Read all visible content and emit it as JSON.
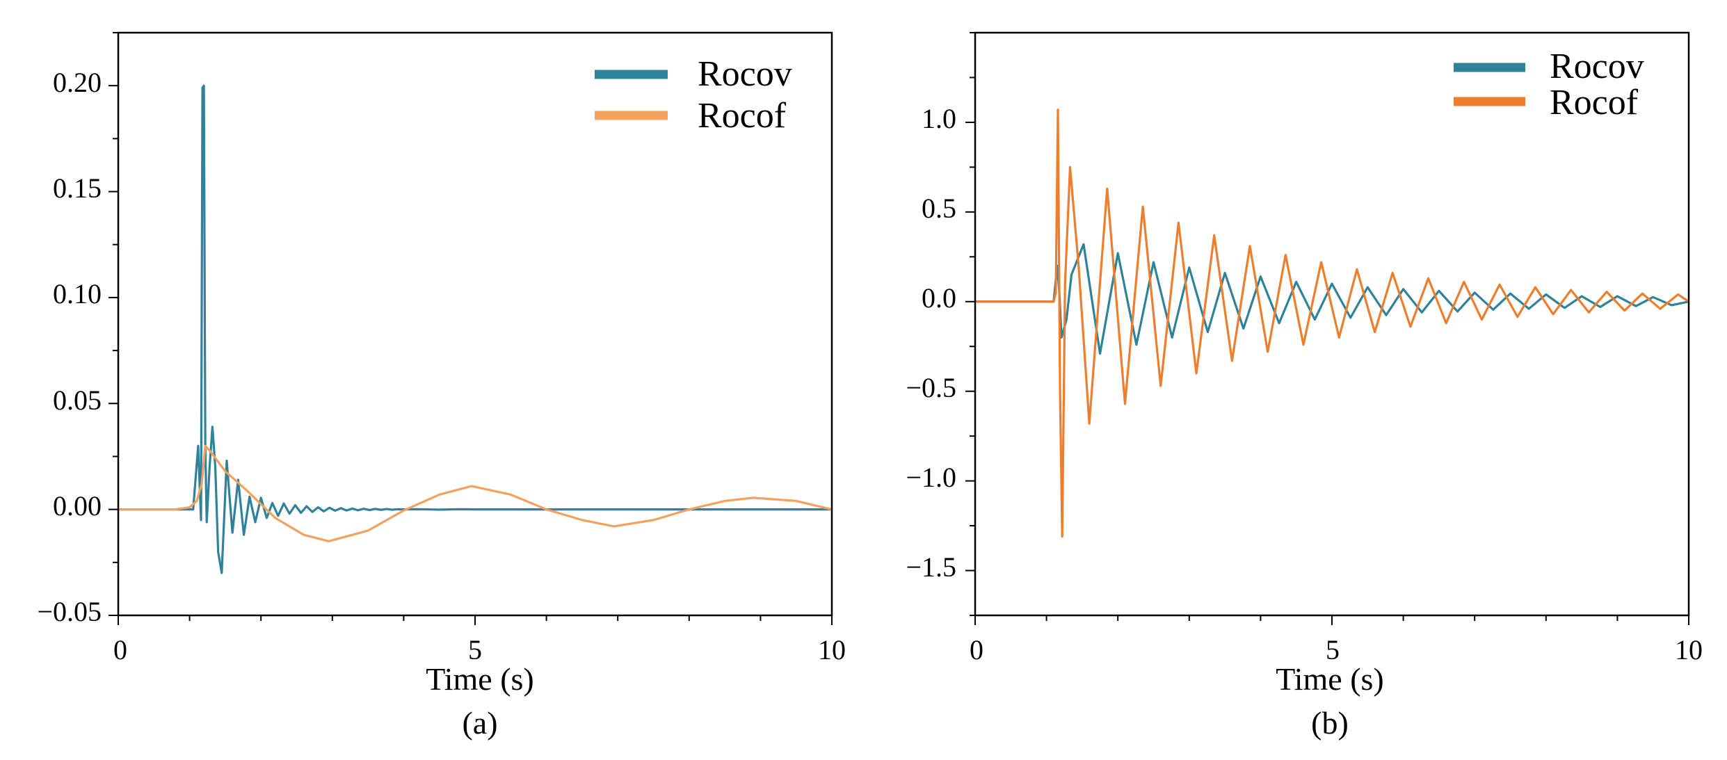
{
  "colors": {
    "rocov": "#2e8299",
    "rocof_a": "#f5a05c",
    "rocof_b": "#ee7d2c"
  },
  "chart_data": [
    {
      "panel": "a",
      "type": "line",
      "caption": "(a)",
      "xlabel": "Time (s)",
      "ylabel": "",
      "xlim": [
        0,
        10
      ],
      "ylim": [
        -0.05,
        0.225
      ],
      "xticks": [
        0,
        5,
        10
      ],
      "xtick_labels": [
        "0",
        "5",
        "10"
      ],
      "yticks": [
        -0.05,
        0.0,
        0.05,
        0.1,
        0.15,
        0.2
      ],
      "ytick_labels": [
        "−0.05",
        "0.00",
        "0.05",
        "0.10",
        "0.15",
        "0.20"
      ],
      "grid": false,
      "legend": {
        "location": "top-right",
        "entries": [
          "Rocov",
          "Rocof"
        ]
      },
      "series": [
        {
          "name": "Rocov",
          "x": [
            0,
            0.7,
            1.05,
            1.12,
            1.16,
            1.18,
            1.2,
            1.22,
            1.24,
            1.28,
            1.32,
            1.36,
            1.4,
            1.45,
            1.52,
            1.6,
            1.68,
            1.76,
            1.84,
            1.92,
            2.0,
            2.08,
            2.16,
            2.24,
            2.32,
            2.4,
            2.48,
            2.56,
            2.64,
            2.72,
            2.8,
            2.88,
            2.96,
            3.04,
            3.12,
            3.2,
            3.28,
            3.36,
            3.44,
            3.52,
            3.6,
            3.68,
            3.76,
            3.84,
            3.92,
            4.0,
            4.2,
            4.5,
            4.8,
            5.0,
            6.0,
            7.0,
            8.0,
            9.0,
            10.0
          ],
          "y": [
            0,
            0,
            0,
            0.03,
            -0.005,
            0.199,
            0.2,
            0.03,
            -0.006,
            0.02,
            0.039,
            0.02,
            -0.02,
            -0.03,
            0.023,
            -0.011,
            0.014,
            -0.012,
            0.006,
            -0.006,
            0.0055,
            -0.004,
            0.003,
            -0.003,
            0.0028,
            -0.002,
            0.002,
            -0.0016,
            0.0015,
            -0.0012,
            0.001,
            -0.0009,
            0.0008,
            -0.0006,
            0.0006,
            -0.0005,
            0.0004,
            -0.0004,
            0.0003,
            -0.0003,
            0.00025,
            -0.0002,
            0.0002,
            -0.00015,
            0.0001,
            0,
            0.0001,
            -0.0001,
            0.0001,
            0,
            0,
            0,
            0,
            0,
            0
          ]
        },
        {
          "name": "Rocof",
          "x": [
            0,
            0.8,
            1.0,
            1.1,
            1.17,
            1.22,
            1.3,
            1.5,
            1.8,
            2.2,
            2.6,
            2.95,
            3.5,
            4.0,
            4.5,
            4.95,
            5.5,
            6.0,
            6.5,
            6.95,
            7.5,
            8.0,
            8.5,
            8.9,
            9.5,
            10.0
          ],
          "y": [
            0,
            0,
            0.001,
            0.004,
            0.012,
            0.03,
            0.027,
            0.018,
            0.009,
            -0.004,
            -0.012,
            -0.015,
            -0.01,
            -0.0005,
            0.007,
            0.011,
            0.007,
            0.0,
            -0.005,
            -0.008,
            -0.005,
            0.0,
            0.004,
            0.0055,
            0.004,
            0.0
          ]
        }
      ]
    },
    {
      "panel": "b",
      "type": "line",
      "caption": "(b)",
      "xlabel": "Time (s)",
      "ylabel": "",
      "xlim": [
        0,
        10
      ],
      "ylim": [
        -1.75,
        1.5
      ],
      "xticks": [
        0,
        5,
        10
      ],
      "xtick_labels": [
        "0",
        "5",
        "10"
      ],
      "yticks": [
        -1.5,
        -1.0,
        -0.5,
        0.0,
        0.5,
        1.0
      ],
      "ytick_labels": [
        "−1.5",
        "−1.0",
        "−0.5",
        "0.0",
        "0.5",
        "1.0"
      ],
      "grid": false,
      "legend": {
        "location": "top-right",
        "entries": [
          "Rocov",
          "Rocof"
        ]
      },
      "series": [
        {
          "name": "Rocov",
          "x": [
            0,
            1.1,
            1.15,
            1.18,
            1.21,
            1.28,
            1.35,
            1.52,
            1.75,
            2.0,
            2.26,
            2.5,
            2.76,
            3.0,
            3.26,
            3.5,
            3.76,
            4.0,
            4.26,
            4.5,
            4.76,
            5.0,
            5.26,
            5.5,
            5.76,
            6.0,
            6.26,
            6.5,
            6.76,
            7.0,
            7.26,
            7.5,
            7.76,
            8.0,
            8.26,
            8.5,
            8.76,
            9.0,
            9.26,
            9.5,
            9.76,
            10.0
          ],
          "y": [
            0,
            0,
            0.2,
            0.05,
            -0.2,
            -0.1,
            0.15,
            0.32,
            -0.29,
            0.27,
            -0.24,
            0.22,
            -0.2,
            0.19,
            -0.17,
            0.16,
            -0.15,
            0.14,
            -0.12,
            0.11,
            -0.1,
            0.1,
            -0.09,
            0.08,
            -0.075,
            0.07,
            -0.06,
            0.06,
            -0.055,
            0.05,
            -0.045,
            0.045,
            -0.04,
            0.04,
            -0.035,
            0.03,
            -0.03,
            0.03,
            -0.025,
            0.025,
            -0.02,
            0.0
          ]
        },
        {
          "name": "Rocof",
          "x": [
            0,
            1.1,
            1.13,
            1.16,
            1.19,
            1.22,
            1.26,
            1.33,
            1.45,
            1.6,
            1.85,
            2.1,
            2.35,
            2.6,
            2.85,
            3.1,
            3.35,
            3.6,
            3.85,
            4.1,
            4.35,
            4.6,
            4.85,
            5.1,
            5.35,
            5.6,
            5.85,
            6.1,
            6.35,
            6.6,
            6.85,
            7.1,
            7.35,
            7.6,
            7.85,
            8.1,
            8.35,
            8.6,
            8.85,
            9.1,
            9.35,
            9.6,
            9.85,
            10.0
          ],
          "y": [
            0,
            0,
            0.05,
            1.07,
            -0.5,
            -1.31,
            0.1,
            0.75,
            0.2,
            -0.68,
            0.63,
            -0.57,
            0.53,
            -0.47,
            0.44,
            -0.4,
            0.37,
            -0.33,
            0.31,
            -0.28,
            0.26,
            -0.24,
            0.22,
            -0.2,
            0.18,
            -0.17,
            0.16,
            -0.14,
            0.13,
            -0.12,
            0.11,
            -0.1,
            0.095,
            -0.085,
            0.08,
            -0.07,
            0.065,
            -0.06,
            0.055,
            -0.05,
            0.045,
            -0.04,
            0.04,
            0.0
          ]
        }
      ]
    }
  ]
}
